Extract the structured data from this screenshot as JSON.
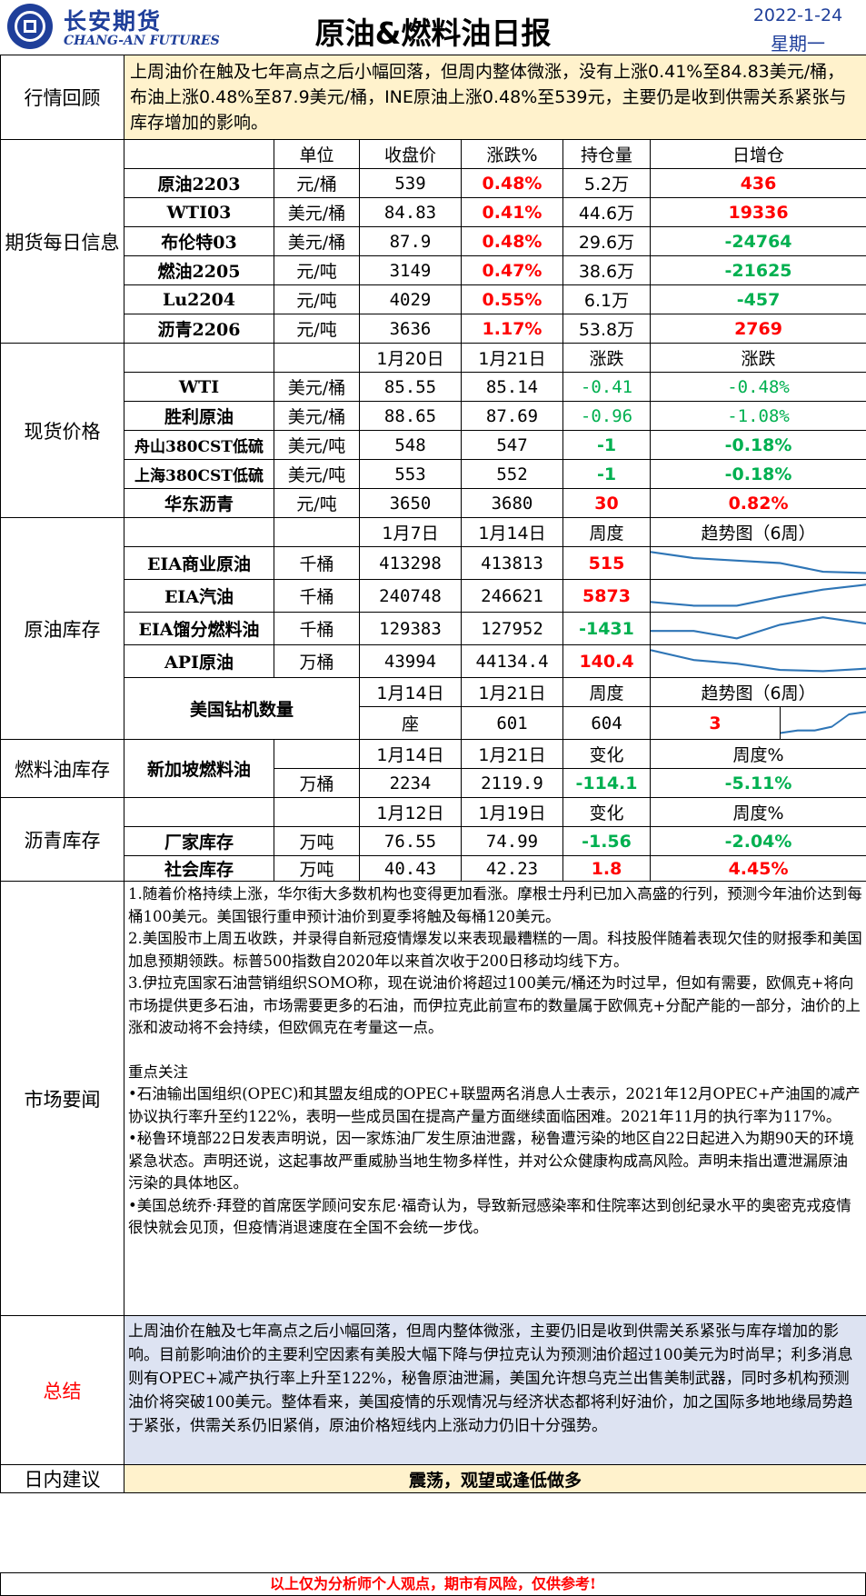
{
  "header": {
    "logo_cn": "长安期货",
    "logo_en": "CHANG-AN FUTURES",
    "title": "原油&燃料油日报",
    "date": "2022-1-24",
    "weekday": "星期一"
  },
  "review": {
    "label": "行情回顾",
    "text": "上周油价在触及七年高点之后小幅回落，但周内整体微涨，没有上涨0.41%至84.83美元/桶，布油上涨0.48%至87.9美元/桶，INE原油上涨0.48%至539元，主要仍是收到供需关系紧张与库存增加的影响。"
  },
  "futures": {
    "label": "期货每日信息",
    "headers": [
      "单位",
      "收盘价",
      "涨跌%",
      "持仓量",
      "日增仓"
    ],
    "rows": [
      {
        "name": "原油2203",
        "unit": "元/桶",
        "close": "539",
        "chg": "0.48%",
        "oi": "5.2万",
        "doi": "436"
      },
      {
        "name": "WTI03",
        "unit": "美元/桶",
        "close": "84.83",
        "chg": "0.41%",
        "oi": "44.6万",
        "doi": "19336"
      },
      {
        "name": "布伦特03",
        "unit": "美元/桶",
        "close": "87.9",
        "chg": "0.48%",
        "oi": "29.6万",
        "doi": "-24764"
      },
      {
        "name": "燃油2205",
        "unit": "元/吨",
        "close": "3149",
        "chg": "0.47%",
        "oi": "38.6万",
        "doi": "-21625"
      },
      {
        "name": "Lu2204",
        "unit": "元/吨",
        "close": "4029",
        "chg": "0.55%",
        "oi": "6.1万",
        "doi": "-457"
      },
      {
        "name": "沥青2206",
        "unit": "元/吨",
        "close": "3636",
        "chg": "1.17%",
        "oi": "53.8万",
        "doi": "2769"
      }
    ]
  },
  "spot": {
    "label": "现货价格",
    "headers": [
      "1月20日",
      "1月21日",
      "涨跌",
      "涨跌"
    ],
    "rows": [
      {
        "name": "WTI",
        "unit": "美元/桶",
        "d1": "85.55",
        "d2": "85.14",
        "chg": "-0.41",
        "pct": "-0.48%"
      },
      {
        "name": "胜利原油",
        "unit": "美元/桶",
        "d1": "88.65",
        "d2": "87.69",
        "chg": "-0.96",
        "pct": "-1.08%"
      },
      {
        "name": "舟山380CST低硫",
        "unit": "美元/吨",
        "d1": "548",
        "d2": "547",
        "chg": "-1",
        "pct": "-0.18%"
      },
      {
        "name": "上海380CST低硫",
        "unit": "美元/吨",
        "d1": "553",
        "d2": "552",
        "chg": "-1",
        "pct": "-0.18%"
      },
      {
        "name": "华东沥青",
        "unit": "元/吨",
        "d1": "3650",
        "d2": "3680",
        "chg": "30",
        "pct": "0.82%"
      }
    ]
  },
  "crude_inv": {
    "label": "原油库存",
    "headers": [
      "1月7日",
      "1月14日",
      "周度",
      "趋势图（6周）"
    ],
    "rows": [
      {
        "name": "EIA商业原油",
        "unit": "千桶",
        "d1": "413298",
        "d2": "413813",
        "chg": "515",
        "trend": [
          0.95,
          0.7,
          0.6,
          0.5,
          0.15,
          0.1
        ]
      },
      {
        "name": "EIA汽油",
        "unit": "千桶",
        "d1": "240748",
        "d2": "246621",
        "chg": "5873",
        "trend": [
          0.25,
          0.1,
          0.1,
          0.45,
          0.75,
          0.95
        ]
      },
      {
        "name": "EIA馏分燃料油",
        "unit": "千桶",
        "d1": "129383",
        "d2": "127952",
        "chg": "-1431",
        "trend": [
          0.4,
          0.4,
          0.1,
          0.65,
          0.95,
          0.7
        ]
      },
      {
        "name": "API原油",
        "unit": "万桶",
        "d1": "43994",
        "d2": "44134.4",
        "chg": "140.4",
        "trend": [
          0.95,
          0.55,
          0.4,
          0.15,
          0.1,
          0.2
        ]
      }
    ],
    "rig": {
      "name": "美国钻机数量",
      "headers": [
        "1月14日",
        "1月21日",
        "周度",
        "趋势图（6周）"
      ],
      "unit": "座",
      "d1": "601",
      "d2": "604",
      "chg": "3",
      "trend": [
        0.1,
        0.2,
        0.2,
        0.35,
        0.85,
        0.95
      ]
    }
  },
  "fuel_inv": {
    "label": "燃料油库存",
    "name": "新加坡燃料油",
    "headers": [
      "1月14日",
      "1月21日",
      "变化",
      "周度%"
    ],
    "unit": "万桶",
    "d1": "2234",
    "d2": "2119.9",
    "chg": "-114.1",
    "pct": "-5.11%"
  },
  "asphalt_inv": {
    "label": "沥青库存",
    "headers": [
      "1月12日",
      "1月19日",
      "变化",
      "周度%"
    ],
    "rows": [
      {
        "name": "厂家库存",
        "unit": "万吨",
        "d1": "76.55",
        "d2": "74.99",
        "chg": "-1.56",
        "pct": "-2.04%"
      },
      {
        "name": "社会库存",
        "unit": "万吨",
        "d1": "40.43",
        "d2": "42.23",
        "chg": "1.8",
        "pct": "4.45%"
      }
    ]
  },
  "news": {
    "label": "市场要闻",
    "lines": [
      "1.随着价格持续上涨，华尔街大多数机构也变得更加看涨。摩根士丹利已加入高盛的行列，预测今年油价达到每桶100美元。美国银行重申预计油价到夏季将触及每桶120美元。",
      "2.美国股市上周五收跌，并录得自新冠疫情爆发以来表现最糟糕的一周。科技股伴随着表现欠佳的财报季和美国加息预期领跌。标普500指数自2020年以来首次收于200日移动均线下方。",
      "3.伊拉克国家石油营销组织SOMO称，现在说油价将超过100美元/桶还为时过早，但如有需要，欧佩克+将向市场提供更多石油，市场需要更多的石油，而伊拉克此前宣布的数量属于欧佩克+分配产能的一部分，油价的上涨和波动将不会持续，但欧佩克在考量这一点。",
      "",
      "重点关注",
      "•石油输出国组织(OPEC)和其盟友组成的OPEC+联盟两名消息人士表示，2021年12月OPEC+产油国的减产协议执行率升至约122%，表明一些成员国在提高产量方面继续面临困难。2021年11月的执行率为117%。",
      "•秘鲁环境部22日发表声明说，因一家炼油厂发生原油泄露，秘鲁遭污染的地区自22日起进入为期90天的环境紧急状态。声明还说，这起事故严重威胁当地生物多样性，并对公众健康构成高风险。声明未指出遭泄漏原油污染的具体地区。",
      "•美国总统乔·拜登的首席医学顾问安东尼·福奇认为，导致新冠感染率和住院率达到创纪录水平的奥密克戎疫情很快就会见顶，但疫情消退速度在全国不会统一步伐。"
    ]
  },
  "summary": {
    "label": "总结",
    "text": "上周油价在触及七年高点之后小幅回落，但周内整体微涨，主要仍旧是收到供需关系紧张与库存增加的影响。目前影响油价的主要利空因素有美股大幅下降与伊拉克认为预测油价超过100美元为时尚早；利多消息则有OPEC+减产执行率上升至122%，秘鲁原油泄漏，美国允许想乌克兰出售美制武器，同时多机构预测油价将突破100美元。整体看来，美国疫情的乐观情况与经济状态都将利好油价，加之国际多地地缘局势趋于紧张，供需关系仍旧紧俏，原油价格短线内上涨动力仍旧十分强势。"
  },
  "advice": {
    "label": "日内建议",
    "text": "震荡，观望或逢低做多"
  },
  "footer": "以上仅为分析师个人观点，期市有风险，仅供参考!",
  "colors": {
    "accent": "#1f3f9a",
    "up": "#ff0000",
    "down": "#00b050",
    "highlight": "#fff2cc",
    "summary_bg": "#dde3f2",
    "spark": "#2e75b6"
  }
}
